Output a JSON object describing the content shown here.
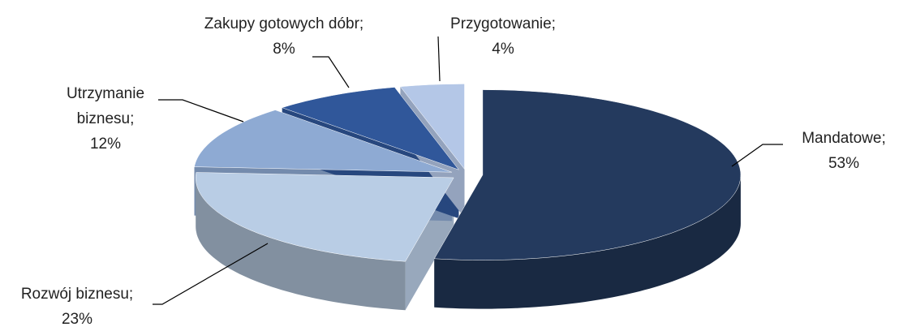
{
  "chart_data": {
    "type": "pie",
    "categories": [
      "Mandatowe;",
      "Rozwój biznesu;",
      "Utrzymanie biznesu;",
      "Zakupy gotowych dóbr;",
      "Przygotowanie;"
    ],
    "values": [
      53,
      23,
      12,
      8,
      4
    ],
    "value_labels": [
      "53%",
      "23%",
      "12%",
      "8%",
      "4%"
    ],
    "colors": [
      "#243a5e",
      "#b9cde5",
      "#8eaad3",
      "#30579a",
      "#b4c7e7"
    ],
    "exploded": true
  }
}
